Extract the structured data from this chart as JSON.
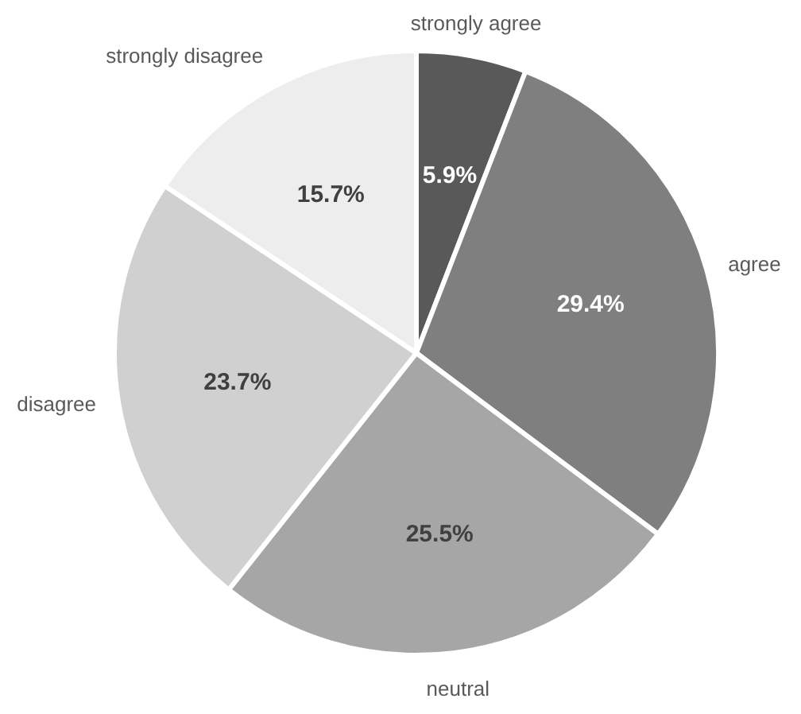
{
  "chart_data": {
    "type": "pie",
    "categories": [
      "strongly agree",
      "agree",
      "neutral",
      "disagree",
      "strongly disagree"
    ],
    "values": [
      5.9,
      29.4,
      25.5,
      23.7,
      15.7
    ],
    "value_labels": [
      "5.9%",
      "29.4%",
      "25.5%",
      "23.7%",
      "15.7%"
    ],
    "colors": [
      "#595959",
      "#7f7f7f",
      "#a6a6a6",
      "#d0d0d0",
      "#ededed"
    ]
  }
}
